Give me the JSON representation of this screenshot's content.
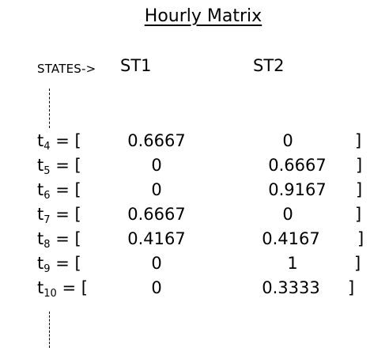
{
  "title": "Hourly Matrix",
  "states_label": "STATES->",
  "states": [
    "ST1",
    "ST2"
  ],
  "rows": [
    {
      "t": "t",
      "sub": "4",
      "eq": " = [",
      "values": [
        "0.6667",
        "0"
      ],
      "close": "]"
    },
    {
      "t": "t",
      "sub": "5",
      "eq": " = [",
      "values": [
        "0",
        "0.6667"
      ],
      "close": "]"
    },
    {
      "t": "t",
      "sub": "6",
      "eq": " = [",
      "values": [
        "0",
        "0.9167"
      ],
      "close": "]"
    },
    {
      "t": "t",
      "sub": "7",
      "eq": " = [",
      "values": [
        "0.6667",
        "0"
      ],
      "close": "]"
    },
    {
      "t": "t",
      "sub": "8",
      "eq": " = [",
      "values": [
        "0.4167",
        "0.4167"
      ],
      "close": "]"
    },
    {
      "t": "t",
      "sub": "9",
      "eq": " = [",
      "values": [
        "0",
        "1"
      ],
      "close": "]"
    },
    {
      "t": "t",
      "sub": "10",
      "eq": " = [",
      "values": [
        "0",
        "0.3333"
      ],
      "close": "]"
    }
  ]
}
